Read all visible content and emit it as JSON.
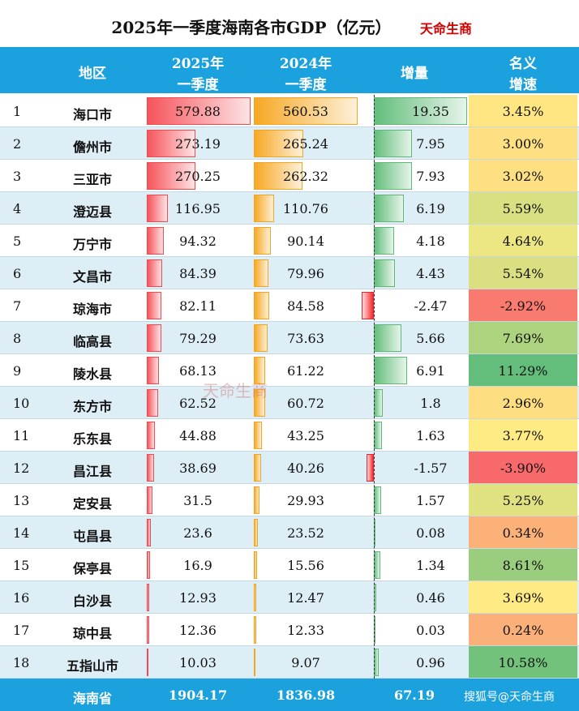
{
  "title": "2025年一季度海南各市GDP（亿元）",
  "brand": "天命生商",
  "watermark": "天命生商",
  "table": {
    "header": [
      [
        "地区"
      ],
      [
        "2025年",
        "一季度"
      ],
      [
        "2024年",
        "一季度"
      ],
      [
        "增量"
      ],
      [
        "名义",
        "增速"
      ]
    ],
    "rows": [
      [
        "1",
        "海口市",
        "579.88",
        "560.53",
        "19.35",
        "3.45%"
      ],
      [
        "2",
        "儋州市",
        "273.19",
        "265.24",
        "7.95",
        "3.00%"
      ],
      [
        "3",
        "三亚市",
        "270.25",
        "262.32",
        "7.93",
        "3.02%"
      ],
      [
        "4",
        "澄迈县",
        "116.95",
        "110.76",
        "6.19",
        "5.59%"
      ],
      [
        "5",
        "万宁市",
        "94.32",
        "90.14",
        "4.18",
        "4.64%"
      ],
      [
        "6",
        "文昌市",
        "84.39",
        "79.96",
        "4.43",
        "5.54%"
      ],
      [
        "7",
        "琼海市",
        "82.11",
        "84.58",
        "-2.47",
        "-2.92%"
      ],
      [
        "8",
        "临高县",
        "79.29",
        "73.63",
        "5.66",
        "7.69%"
      ],
      [
        "9",
        "陵水县",
        "68.13",
        "61.22",
        "6.91",
        "11.29%"
      ],
      [
        "10",
        "东方市",
        "62.52",
        "60.72",
        "1.8",
        "2.96%"
      ],
      [
        "11",
        "乐东县",
        "44.88",
        "43.25",
        "1.63",
        "3.77%"
      ],
      [
        "12",
        "昌江县",
        "38.69",
        "40.26",
        "-1.57",
        "-3.90%"
      ],
      [
        "13",
        "定安县",
        "31.5",
        "29.93",
        "1.57",
        "5.25%"
      ],
      [
        "14",
        "屯昌县",
        "23.6",
        "23.52",
        "0.08",
        "0.34%"
      ],
      [
        "15",
        "保亭县",
        "16.9",
        "15.56",
        "1.34",
        "8.61%"
      ],
      [
        "16",
        "白沙县",
        "12.93",
        "12.47",
        "0.46",
        "3.69%"
      ],
      [
        "17",
        "琼中县",
        "12.36",
        "12.33",
        "0.03",
        "0.24%"
      ],
      [
        "18",
        "五指山市",
        "10.03",
        "9.07",
        "0.96",
        "10.58%"
      ]
    ],
    "footer": [
      "海南省",
      "1904.17",
      "1836.98",
      "67.19"
    ],
    "credit": "搜狐号@天命生商"
  }
}
